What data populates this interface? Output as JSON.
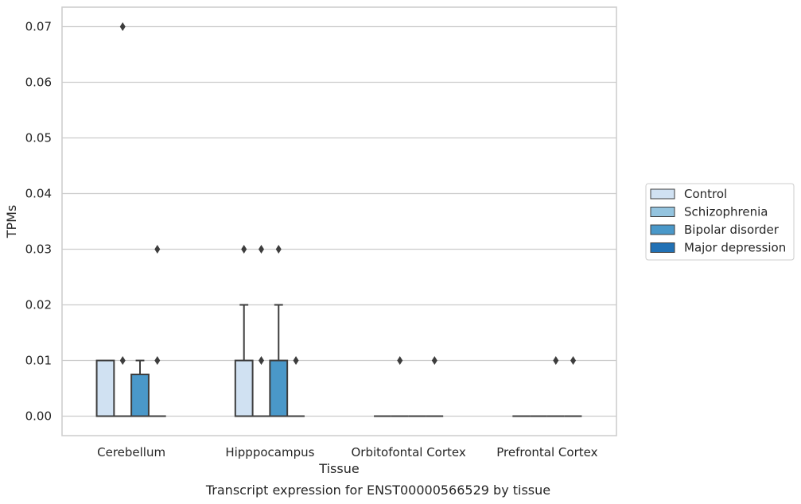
{
  "chart_data": {
    "type": "boxplot",
    "title": "",
    "caption": "Transcript expression for ENST00000566529 by tissue",
    "xlabel": "Tissue",
    "ylabel": "TPMs",
    "ylim": [
      -0.0035,
      0.0735
    ],
    "yticks": [
      "0.00",
      "0.01",
      "0.02",
      "0.03",
      "0.04",
      "0.05",
      "0.06",
      "0.07"
    ],
    "grid": "horizontal",
    "legend_position": "right",
    "categories": [
      "Cerebellum",
      "Hipppocampus",
      "Orbitofontal Cortex",
      "Prefrontal Cortex"
    ],
    "series": [
      {
        "name": "Control",
        "color": "#d0e1f2",
        "boxes": [
          {
            "q1": 0.0,
            "median": 0.0,
            "q3": 0.01,
            "whisker_low": 0.0,
            "whisker_high": 0.01,
            "outliers": []
          },
          {
            "q1": 0.0,
            "median": 0.0,
            "q3": 0.01,
            "whisker_low": 0.0,
            "whisker_high": 0.02,
            "outliers": [
              0.03
            ]
          },
          {
            "q1": 0.0,
            "median": 0.0,
            "q3": 0.0,
            "whisker_low": 0.0,
            "whisker_high": 0.0,
            "outliers": []
          },
          {
            "q1": 0.0,
            "median": 0.0,
            "q3": 0.0,
            "whisker_low": 0.0,
            "whisker_high": 0.0,
            "outliers": []
          }
        ]
      },
      {
        "name": "Schizophrenia",
        "color": "#94c4df",
        "boxes": [
          {
            "q1": 0.0,
            "median": 0.0,
            "q3": 0.0,
            "whisker_low": 0.0,
            "whisker_high": 0.0,
            "outliers": [
              0.01,
              0.07
            ]
          },
          {
            "q1": 0.0,
            "median": 0.0,
            "q3": 0.0,
            "whisker_low": 0.0,
            "whisker_high": 0.0,
            "outliers": [
              0.01,
              0.03
            ]
          },
          {
            "q1": 0.0,
            "median": 0.0,
            "q3": 0.0,
            "whisker_low": 0.0,
            "whisker_high": 0.0,
            "outliers": [
              0.01
            ]
          },
          {
            "q1": 0.0,
            "median": 0.0,
            "q3": 0.0,
            "whisker_low": 0.0,
            "whisker_high": 0.0,
            "outliers": []
          }
        ]
      },
      {
        "name": "Bipolar disorder",
        "color": "#4a98c9",
        "boxes": [
          {
            "q1": 0.0,
            "median": 0.0,
            "q3": 0.0075,
            "whisker_low": 0.0,
            "whisker_high": 0.01,
            "outliers": []
          },
          {
            "q1": 0.0,
            "median": 0.0,
            "q3": 0.01,
            "whisker_low": 0.0,
            "whisker_high": 0.02,
            "outliers": [
              0.03
            ]
          },
          {
            "q1": 0.0,
            "median": 0.0,
            "q3": 0.0,
            "whisker_low": 0.0,
            "whisker_high": 0.0,
            "outliers": []
          },
          {
            "q1": 0.0,
            "median": 0.0,
            "q3": 0.0,
            "whisker_low": 0.0,
            "whisker_high": 0.0,
            "outliers": [
              0.01
            ]
          }
        ]
      },
      {
        "name": "Major depression",
        "color": "#2171b5",
        "boxes": [
          {
            "q1": 0.0,
            "median": 0.0,
            "q3": 0.0,
            "whisker_low": 0.0,
            "whisker_high": 0.0,
            "outliers": [
              0.01,
              0.03
            ]
          },
          {
            "q1": 0.0,
            "median": 0.0,
            "q3": 0.0,
            "whisker_low": 0.0,
            "whisker_high": 0.0,
            "outliers": [
              0.01
            ]
          },
          {
            "q1": 0.0,
            "median": 0.0,
            "q3": 0.0,
            "whisker_low": 0.0,
            "whisker_high": 0.0,
            "outliers": [
              0.01
            ]
          },
          {
            "q1": 0.0,
            "median": 0.0,
            "q3": 0.0,
            "whisker_low": 0.0,
            "whisker_high": 0.0,
            "outliers": [
              0.01
            ]
          }
        ]
      }
    ]
  }
}
